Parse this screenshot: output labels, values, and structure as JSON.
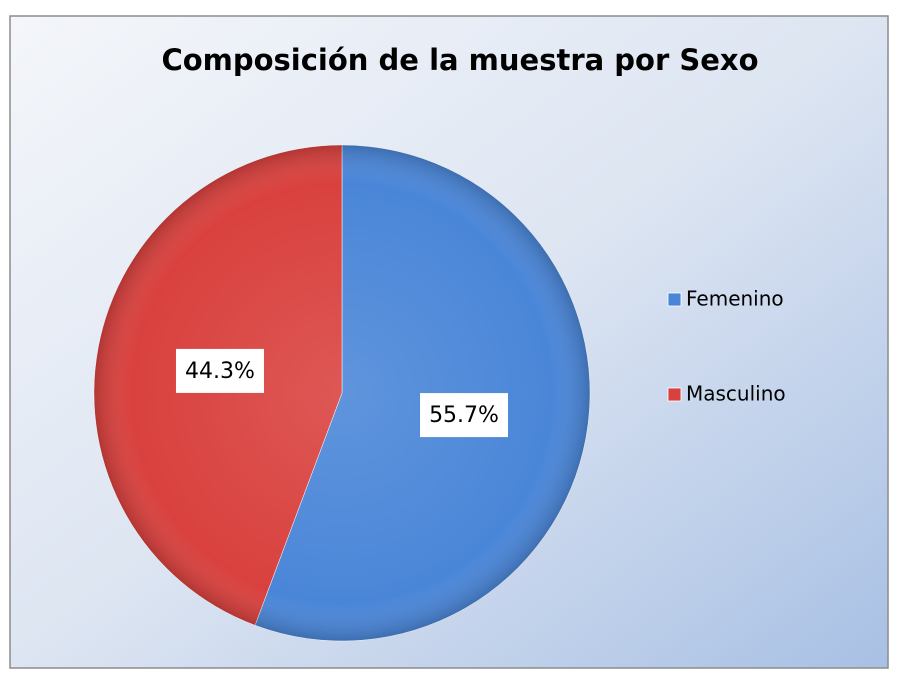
{
  "chart_data": {
    "type": "pie",
    "title": "Composición de la muestra por Sexo",
    "categories": [
      "Femenino",
      "Masculino"
    ],
    "values": [
      55.7,
      44.3
    ],
    "value_labels": [
      "55.7%",
      "44.3%"
    ],
    "colors": [
      "#4a86d8",
      "#d9413e"
    ],
    "legend": "right"
  }
}
